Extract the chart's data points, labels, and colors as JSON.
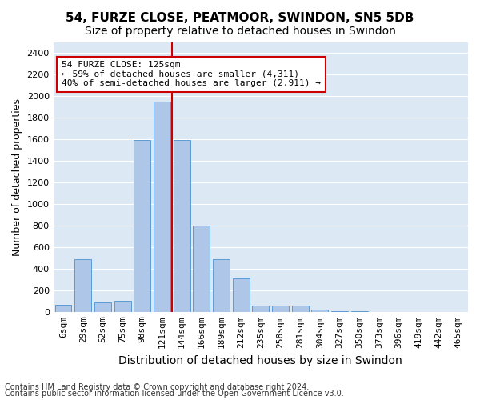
{
  "title": "54, FURZE CLOSE, PEATMOOR, SWINDON, SN5 5DB",
  "subtitle": "Size of property relative to detached houses in Swindon",
  "xlabel": "Distribution of detached houses by size in Swindon",
  "ylabel": "Number of detached properties",
  "footer1": "Contains HM Land Registry data © Crown copyright and database right 2024.",
  "footer2": "Contains public sector information licensed under the Open Government Licence v3.0.",
  "annotation_title": "54 FURZE CLOSE: 125sqm",
  "annotation_line1": "← 59% of detached houses are smaller (4,311)",
  "annotation_line2": "40% of semi-detached houses are larger (2,911) →",
  "property_size": 125,
  "bar_labels": [
    "6sqm",
    "29sqm",
    "52sqm",
    "75sqm",
    "98sqm",
    "121sqm",
    "144sqm",
    "166sqm",
    "189sqm",
    "212sqm",
    "235sqm",
    "258sqm",
    "281sqm",
    "304sqm",
    "327sqm",
    "350sqm",
    "373sqm",
    "396sqm",
    "419sqm",
    "442sqm",
    "465sqm"
  ],
  "bar_values": [
    65,
    490,
    90,
    100,
    1590,
    1950,
    1590,
    800,
    490,
    310,
    55,
    55,
    55,
    20,
    5,
    5,
    0,
    0,
    0,
    0,
    0
  ],
  "bar_color": "#aec6e8",
  "bar_edgecolor": "#5b9bd5",
  "vline_color": "#cc0000",
  "annotation_box_edgecolor": "#cc0000",
  "ylim": [
    0,
    2500
  ],
  "yticks": [
    0,
    200,
    400,
    600,
    800,
    1000,
    1200,
    1400,
    1600,
    1800,
    2000,
    2200,
    2400
  ],
  "background_color": "#dce9f5",
  "grid_color": "#ffffff",
  "title_fontsize": 11,
  "subtitle_fontsize": 10,
  "xlabel_fontsize": 10,
  "ylabel_fontsize": 9,
  "tick_fontsize": 8,
  "annotation_fontsize": 8,
  "footer_fontsize": 7
}
